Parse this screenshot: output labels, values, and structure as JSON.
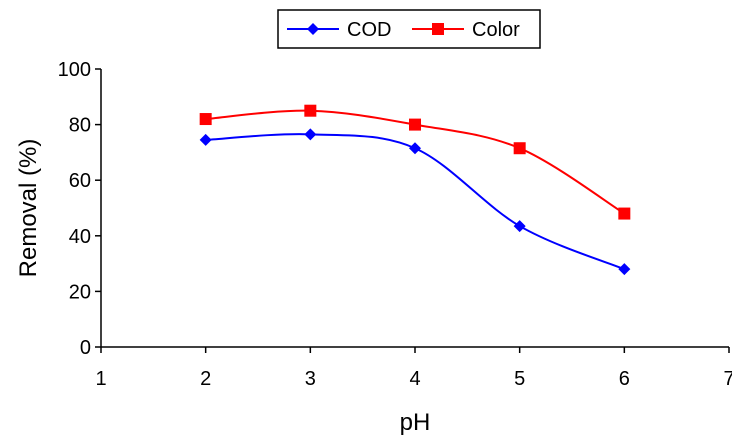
{
  "chart_data": {
    "type": "line",
    "title": "",
    "xlabel": "pH",
    "ylabel": "Removal (%)",
    "xlim": [
      1,
      7
    ],
    "ylim": [
      0,
      100
    ],
    "xticks": [
      1,
      2,
      3,
      4,
      5,
      6,
      7
    ],
    "yticks": [
      0,
      20,
      40,
      60,
      80,
      100
    ],
    "grid": false,
    "legend_position": "top-center",
    "smooth": true,
    "series": [
      {
        "name": "COD",
        "color": "#0000ff",
        "marker": "diamond",
        "x": [
          2,
          3,
          4,
          5,
          6
        ],
        "y": [
          74.5,
          76.5,
          71.5,
          43.5,
          28
        ]
      },
      {
        "name": "Color",
        "color": "#ff0000",
        "marker": "square",
        "x": [
          2,
          3,
          4,
          5,
          6
        ],
        "y": [
          82,
          85,
          80,
          71.5,
          48
        ]
      }
    ]
  }
}
